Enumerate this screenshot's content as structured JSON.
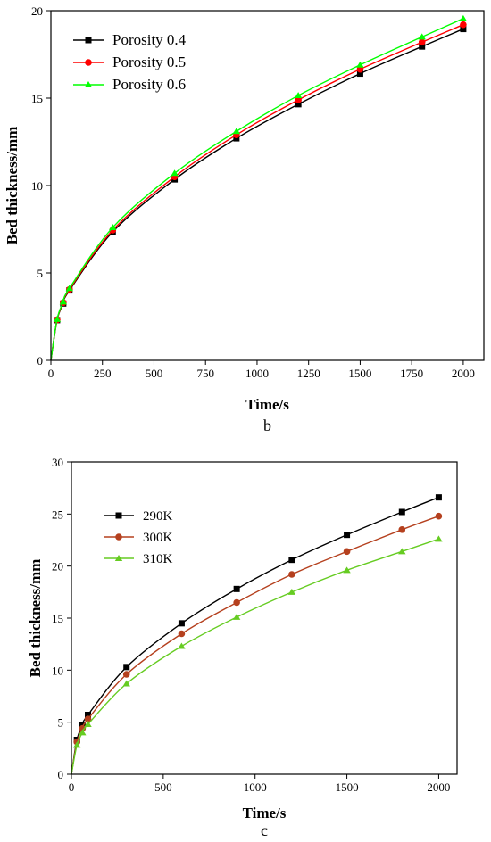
{
  "chart_data": [
    {
      "id": "b",
      "type": "line",
      "caption": "b",
      "xlabel": "Time/s",
      "ylabel": "Bed thickness/mm",
      "xlim": [
        0,
        2100
      ],
      "ylim": [
        0,
        20
      ],
      "xticks": [
        0,
        250,
        500,
        750,
        1000,
        1250,
        1500,
        1750,
        2000
      ],
      "yticks": [
        0,
        5,
        10,
        15,
        20
      ],
      "legend_position": "top-left",
      "series": [
        {
          "name": "Porosity 0.4",
          "color": "#000000",
          "marker": "square",
          "x": [
            0,
            30,
            60,
            90,
            300,
            600,
            900,
            1200,
            1500,
            1800,
            2000
          ],
          "y": [
            0,
            2.3,
            3.25,
            4.0,
            7.35,
            10.35,
            12.7,
            14.65,
            16.4,
            17.95,
            18.95
          ]
        },
        {
          "name": "Porosity 0.5",
          "color": "#ff0000",
          "marker": "circle",
          "x": [
            0,
            30,
            60,
            90,
            300,
            600,
            900,
            1200,
            1500,
            1800,
            2000
          ],
          "y": [
            0,
            2.32,
            3.3,
            4.05,
            7.45,
            10.5,
            12.9,
            14.9,
            16.65,
            18.2,
            19.2
          ]
        },
        {
          "name": "Porosity 0.6",
          "color": "#00ff00",
          "marker": "triangle",
          "x": [
            0,
            30,
            60,
            90,
            300,
            600,
            900,
            1200,
            1500,
            1800,
            2000
          ],
          "y": [
            0,
            2.35,
            3.35,
            4.12,
            7.6,
            10.7,
            13.1,
            15.15,
            16.9,
            18.5,
            19.55
          ]
        }
      ]
    },
    {
      "id": "c",
      "type": "line",
      "caption": "c",
      "xlabel": "Time/s",
      "ylabel": "Bed thickness/mm",
      "xlim": [
        0,
        2100
      ],
      "ylim": [
        0,
        30
      ],
      "xticks": [
        0,
        500,
        1000,
        1500,
        2000
      ],
      "yticks": [
        0,
        5,
        10,
        15,
        20,
        25,
        30
      ],
      "legend_position": "top-left",
      "series": [
        {
          "name": "290K",
          "color": "#000000",
          "marker": "square",
          "x": [
            0,
            30,
            60,
            90,
            300,
            600,
            900,
            1200,
            1500,
            1800,
            2000
          ],
          "y": [
            0,
            3.3,
            4.7,
            5.7,
            10.3,
            14.5,
            17.8,
            20.6,
            23.0,
            25.2,
            26.6
          ]
        },
        {
          "name": "300K",
          "color": "#b5401e",
          "marker": "circle",
          "x": [
            0,
            30,
            60,
            90,
            300,
            600,
            900,
            1200,
            1500,
            1800,
            2000
          ],
          "y": [
            0,
            3.1,
            4.4,
            5.3,
            9.6,
            13.5,
            16.5,
            19.2,
            21.4,
            23.5,
            24.8
          ]
        },
        {
          "name": "310K",
          "color": "#66cc22",
          "marker": "triangle",
          "x": [
            0,
            30,
            60,
            90,
            300,
            600,
            900,
            1200,
            1500,
            1800,
            2000
          ],
          "y": [
            0,
            2.8,
            4.0,
            4.8,
            8.7,
            12.3,
            15.1,
            17.5,
            19.6,
            21.4,
            22.6
          ]
        }
      ]
    }
  ]
}
